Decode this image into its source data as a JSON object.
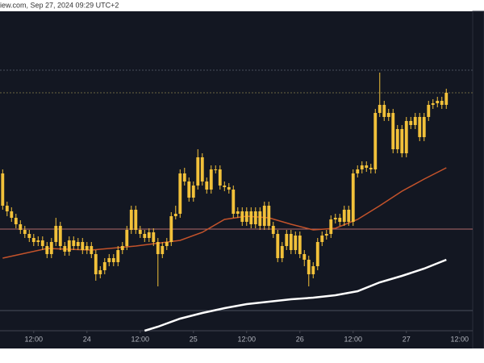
{
  "chart_data": {
    "type": "candlestick",
    "title": "iew.com, Sep 27, 2024 09:29 UTC+2",
    "color": "#f2c13a",
    "background": "#131722",
    "xlim": [
      4.4,
      113.5
    ],
    "ylim": [
      30,
      440
    ],
    "xticks": [
      {
        "value": 12,
        "label": "12:00"
      },
      24,
      {
        "value": 36,
        "label": "12:00"
      },
      {
        "value": 48,
        "label": "25"
      },
      {
        "value": 60,
        "label": "12:00"
      },
      {
        "value": 72,
        "label": "26"
      },
      {
        "value": 84,
        "label": "12:00"
      },
      {
        "value": 96,
        "label": "27"
      },
      {
        "value": 108,
        "label": "12:00"
      }
    ],
    "x": [
      5,
      6,
      7,
      8,
      9,
      10,
      11,
      12,
      13,
      14,
      15,
      16,
      17,
      18,
      19,
      20,
      21,
      22,
      23,
      24,
      25,
      26,
      27,
      28,
      29,
      30,
      31,
      32,
      33,
      34,
      35,
      36,
      37,
      38,
      39,
      40,
      41,
      42,
      43,
      44,
      45,
      46,
      47,
      48,
      49,
      50,
      51,
      52,
      53,
      54,
      55,
      56,
      57,
      58,
      59,
      60,
      61,
      62,
      63,
      64,
      65,
      66,
      67,
      68,
      69,
      70,
      71,
      72,
      73,
      74,
      75,
      76,
      77,
      78,
      79,
      80,
      81,
      82,
      83,
      84,
      85,
      86,
      87,
      88,
      89,
      90,
      91,
      92,
      93,
      94,
      95,
      96,
      97,
      98,
      99,
      100,
      101,
      102,
      103,
      104,
      105
    ],
    "open": [
      225,
      185,
      178,
      170,
      162,
      155,
      150,
      145,
      140,
      142,
      135,
      125,
      140,
      160,
      135,
      128,
      142,
      135,
      140,
      130,
      135,
      125,
      100,
      105,
      115,
      120,
      115,
      130,
      135,
      155,
      180,
      155,
      150,
      145,
      152,
      140,
      125,
      135,
      140,
      172,
      175,
      225,
      215,
      195,
      210,
      245,
      215,
      205,
      230,
      230,
      210,
      208,
      205,
      175,
      178,
      165,
      178,
      162,
      178,
      160,
      185,
      160,
      150,
      120,
      135,
      150,
      130,
      148,
      125,
      118,
      100,
      110,
      140,
      148,
      150,
      168,
      170,
      165,
      180,
      165,
      225,
      230,
      235,
      232,
      230,
      300,
      310,
      295,
      300,
      255,
      280,
      250,
      290,
      285,
      295,
      270,
      295,
      310,
      312,
      315,
      310
    ],
    "high": [
      230,
      190,
      183,
      175,
      167,
      160,
      155,
      150,
      147,
      147,
      140,
      145,
      170,
      165,
      140,
      147,
      147,
      145,
      145,
      140,
      140,
      130,
      110,
      120,
      125,
      125,
      135,
      140,
      160,
      185,
      185,
      160,
      155,
      157,
      157,
      145,
      140,
      145,
      177,
      185,
      230,
      232,
      220,
      215,
      255,
      250,
      220,
      235,
      235,
      235,
      215,
      213,
      210,
      183,
      183,
      183,
      183,
      183,
      183,
      190,
      190,
      165,
      155,
      140,
      155,
      155,
      153,
      153,
      130,
      123,
      115,
      145,
      153,
      155,
      173,
      175,
      175,
      185,
      185,
      230,
      235,
      240,
      240,
      237,
      305,
      350,
      315,
      305,
      305,
      285,
      285,
      295,
      295,
      300,
      300,
      300,
      315,
      317,
      320,
      320,
      330
    ],
    "low": [
      180,
      172,
      165,
      157,
      150,
      145,
      140,
      135,
      135,
      130,
      120,
      120,
      135,
      130,
      123,
      123,
      130,
      130,
      125,
      125,
      120,
      92,
      95,
      100,
      110,
      110,
      110,
      125,
      130,
      150,
      150,
      145,
      140,
      140,
      135,
      85,
      120,
      130,
      135,
      168,
      170,
      210,
      190,
      190,
      205,
      210,
      200,
      200,
      225,
      205,
      203,
      200,
      170,
      170,
      160,
      160,
      157,
      157,
      155,
      155,
      155,
      145,
      115,
      115,
      130,
      125,
      125,
      120,
      110,
      85,
      95,
      105,
      135,
      143,
      145,
      163,
      160,
      160,
      160,
      160,
      220,
      225,
      227,
      225,
      225,
      295,
      290,
      290,
      250,
      250,
      245,
      245,
      280,
      280,
      265,
      265,
      290,
      305,
      307,
      305,
      305
    ],
    "close": [
      185,
      178,
      170,
      162,
      155,
      150,
      145,
      140,
      142,
      135,
      125,
      140,
      160,
      135,
      128,
      142,
      135,
      140,
      130,
      135,
      125,
      100,
      105,
      115,
      120,
      115,
      130,
      135,
      155,
      180,
      155,
      150,
      145,
      152,
      140,
      125,
      135,
      140,
      172,
      175,
      225,
      215,
      195,
      210,
      245,
      215,
      205,
      230,
      230,
      210,
      208,
      205,
      175,
      178,
      165,
      178,
      162,
      178,
      160,
      185,
      160,
      150,
      120,
      135,
      150,
      130,
      148,
      125,
      118,
      100,
      110,
      140,
      148,
      150,
      168,
      170,
      165,
      180,
      165,
      225,
      230,
      235,
      232,
      230,
      300,
      310,
      295,
      300,
      255,
      280,
      250,
      290,
      285,
      295,
      270,
      295,
      310,
      312,
      315,
      310,
      325
    ],
    "lines": [
      {
        "color": "#c4532b",
        "width": 1.5,
        "x": [
          5,
          15,
          25,
          35,
          45,
          50,
          55,
          60,
          65,
          70,
          75,
          80,
          85,
          90,
          95,
          100,
          105
        ],
        "values": [
          120,
          132,
          130,
          135,
          142,
          152,
          168,
          172,
          170,
          162,
          155,
          157,
          168,
          185,
          203,
          218,
          232
        ]
      },
      {
        "color": "#ffffff",
        "width": 2.5,
        "x": [
          37,
          40,
          45,
          50,
          55,
          60,
          65,
          70,
          75,
          80,
          85,
          90,
          95,
          100,
          105
        ],
        "values": [
          30,
          35,
          45,
          52,
          58,
          63,
          66,
          69,
          71,
          74,
          79,
          90,
          98,
          107,
          118
        ]
      }
    ],
    "levels": [
      {
        "value": 353,
        "color": "#4a4f5c",
        "dash": true
      },
      {
        "value": 325,
        "color": "#6b6440",
        "dash": true
      },
      {
        "value": 156,
        "color": "#b0686b",
        "dash": false
      },
      {
        "value": 55,
        "color": "#4a4f5c",
        "dash": false
      }
    ]
  }
}
